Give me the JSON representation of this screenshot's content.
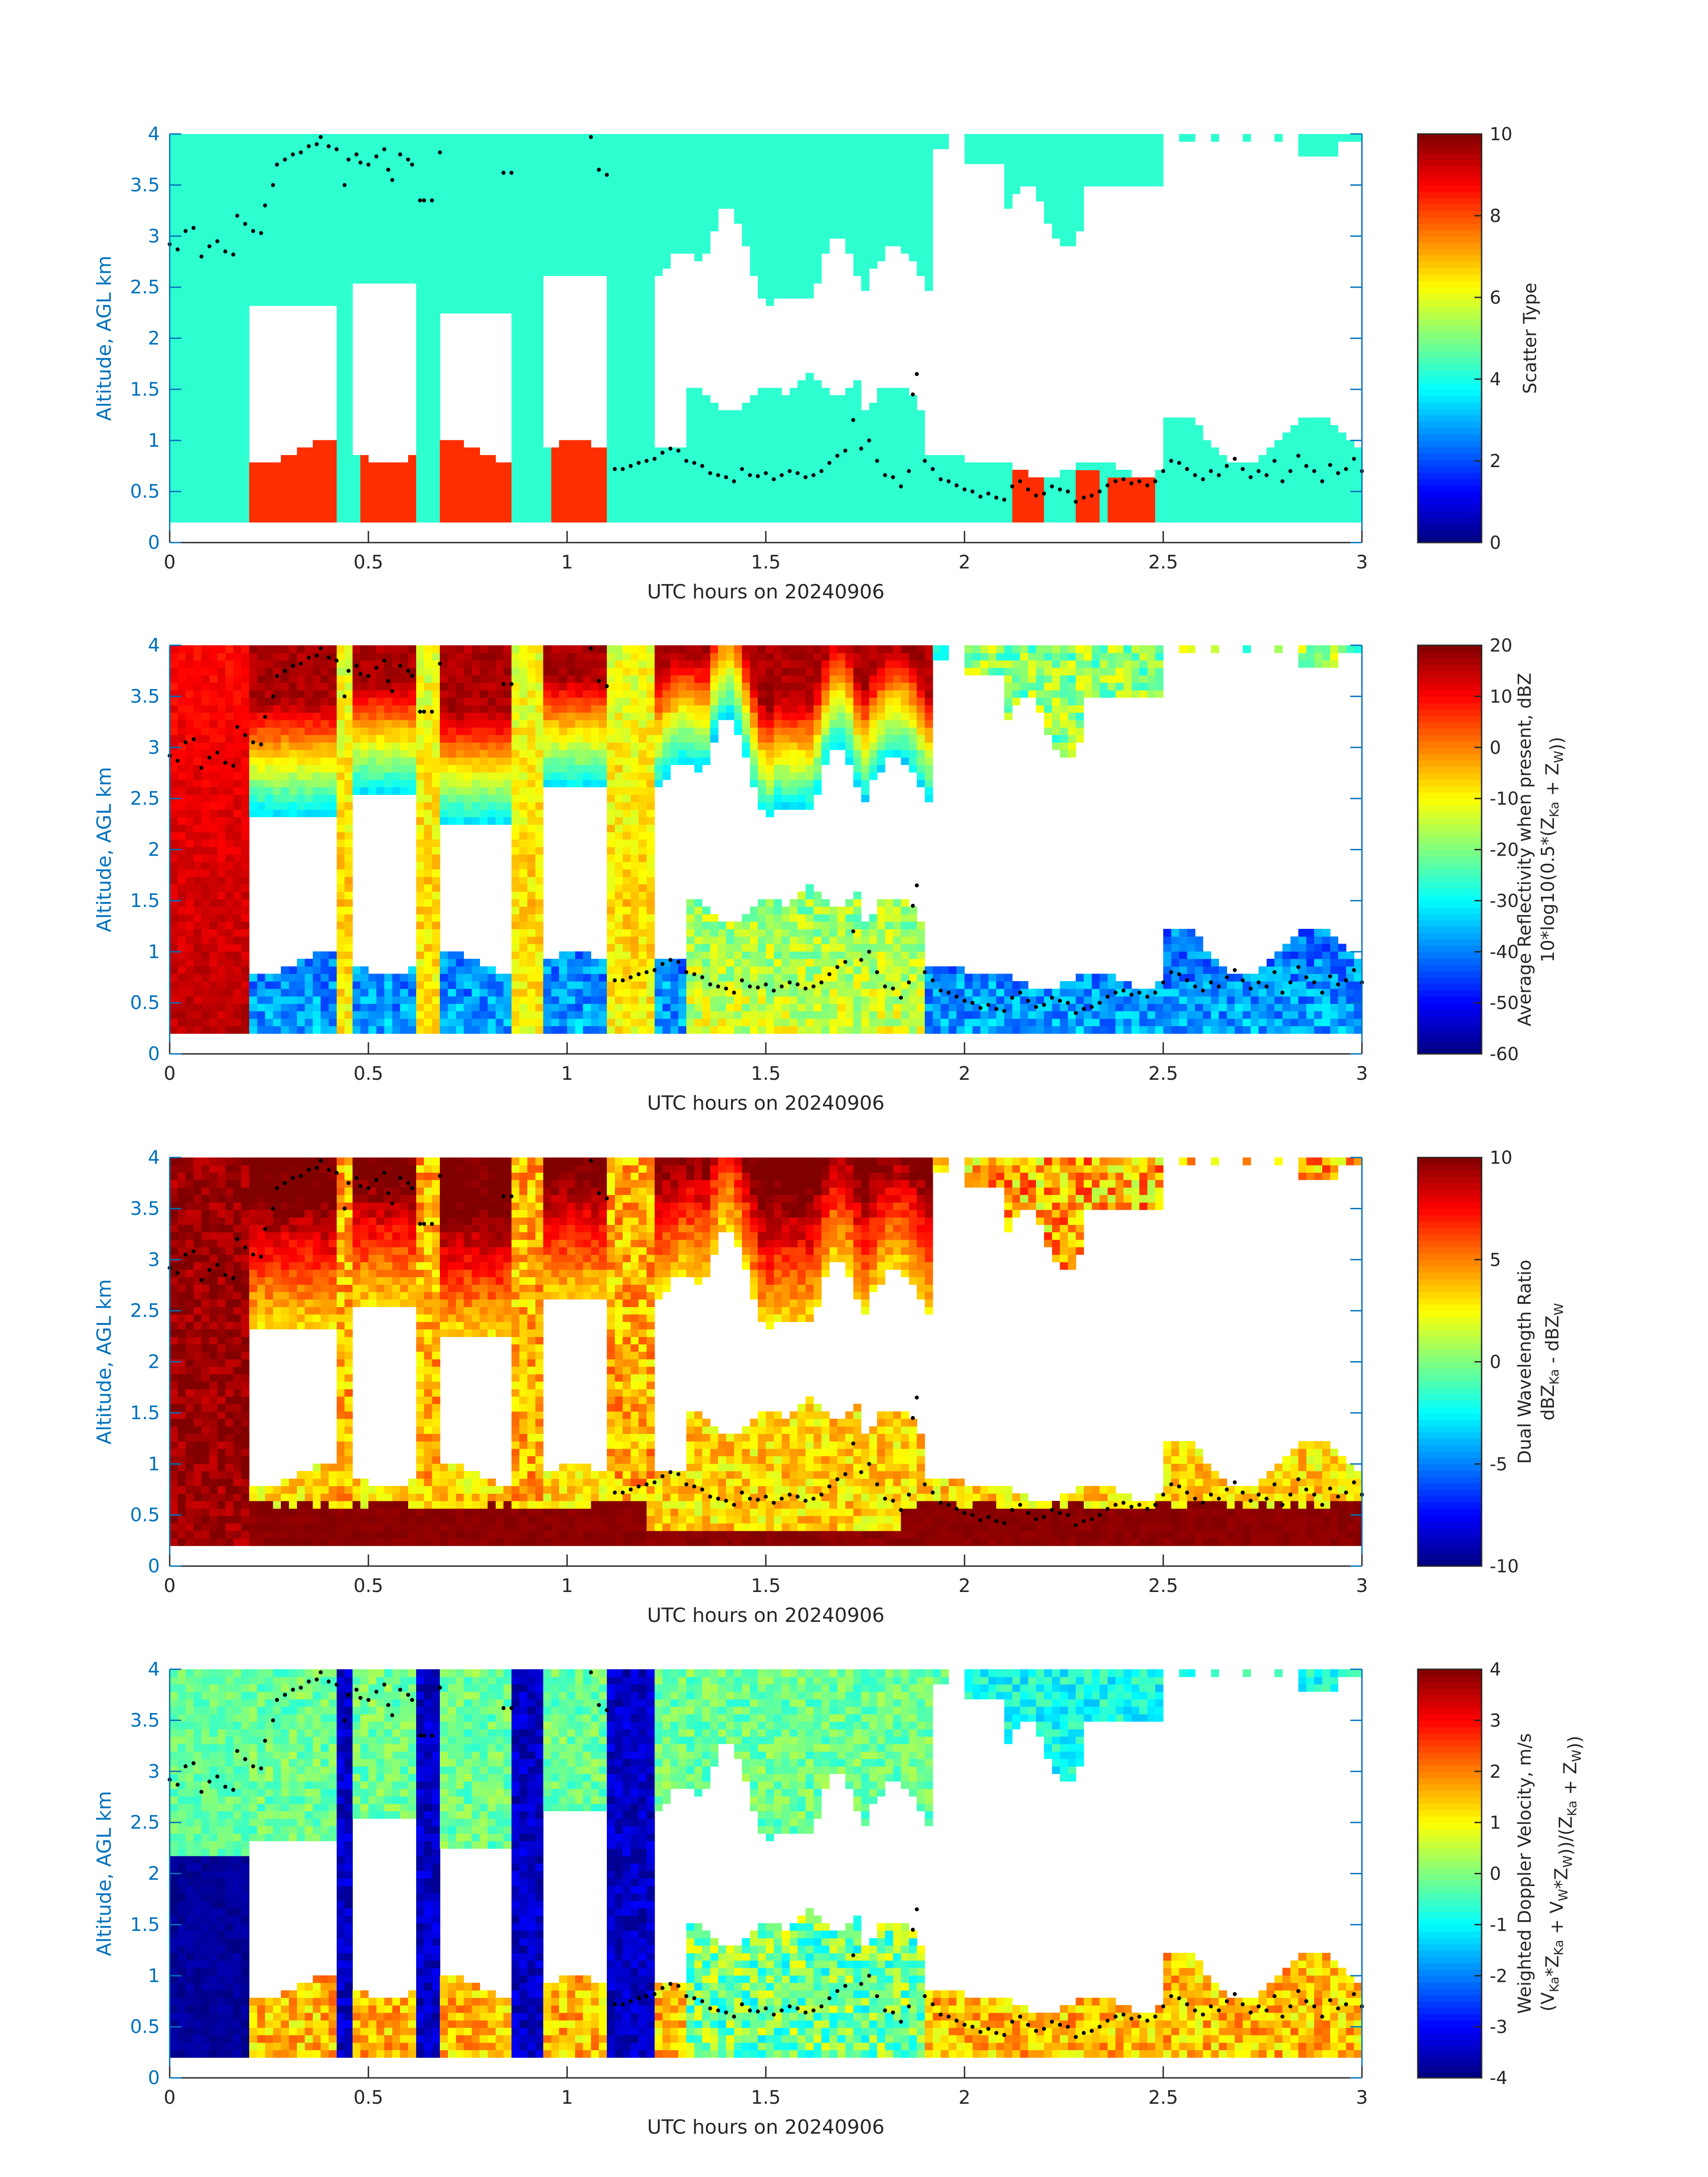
{
  "chart_data": [
    {
      "type": "heatmap",
      "panel": 1,
      "xlabel": "UTC hours on 20240906",
      "ylabel": "Altitude, AGL km",
      "xlim": [
        0,
        3
      ],
      "ylim": [
        0,
        4
      ],
      "xticks": [
        0,
        0.5,
        1,
        1.5,
        2,
        2.5,
        3
      ],
      "xtick_labels": [
        "0",
        "0.5",
        "1",
        "1.5",
        "2",
        "2.5",
        "3"
      ],
      "yticks": [
        0,
        0.5,
        1,
        1.5,
        2,
        2.5,
        3,
        3.5,
        4
      ],
      "ytick_labels": [
        "0",
        "0.5",
        "1",
        "1.5",
        "2",
        "2.5",
        "3",
        "3.5",
        "4"
      ],
      "colorbar": {
        "label_lines": [
          "Scatter Type"
        ],
        "range": [
          0,
          10
        ],
        "ticks": [
          0,
          2,
          4,
          6,
          8,
          10
        ],
        "tick_labels": [
          "0",
          "2",
          "4",
          "6",
          "8",
          "10"
        ]
      },
      "field": "scatter",
      "colormap": "jet"
    },
    {
      "type": "heatmap",
      "panel": 2,
      "xlabel": "UTC hours on 20240906",
      "ylabel": "Altitude, AGL km",
      "xlim": [
        0,
        3
      ],
      "ylim": [
        0,
        4
      ],
      "xticks": [
        0,
        0.5,
        1,
        1.5,
        2,
        2.5,
        3
      ],
      "xtick_labels": [
        "0",
        "0.5",
        "1",
        "1.5",
        "2",
        "2.5",
        "3"
      ],
      "yticks": [
        0,
        0.5,
        1,
        1.5,
        2,
        2.5,
        3,
        3.5,
        4
      ],
      "ytick_labels": [
        "0",
        "0.5",
        "1",
        "1.5",
        "2",
        "2.5",
        "3",
        "3.5",
        "4"
      ],
      "colorbar": {
        "label_lines": [
          "Average Reflectivity when present, dBZ",
          "10*log10(0.5*(Z_Ka + Z_W))"
        ],
        "range": [
          -60,
          20
        ],
        "ticks": [
          -60,
          -50,
          -40,
          -30,
          -20,
          -10,
          0,
          10,
          20
        ],
        "tick_labels": [
          "-60",
          "-50",
          "-40",
          "-30",
          "-20",
          "-10",
          "0",
          "10",
          "20"
        ]
      },
      "field": "reflectivity",
      "colormap": "jet"
    },
    {
      "type": "heatmap",
      "panel": 3,
      "xlabel": "UTC hours on 20240906",
      "ylabel": "Altitude, AGL km",
      "xlim": [
        0,
        3
      ],
      "ylim": [
        0,
        4
      ],
      "xticks": [
        0,
        0.5,
        1,
        1.5,
        2,
        2.5,
        3
      ],
      "xtick_labels": [
        "0",
        "0.5",
        "1",
        "1.5",
        "2",
        "2.5",
        "3"
      ],
      "yticks": [
        0,
        0.5,
        1,
        1.5,
        2,
        2.5,
        3,
        3.5,
        4
      ],
      "ytick_labels": [
        "0",
        "0.5",
        "1",
        "1.5",
        "2",
        "2.5",
        "3",
        "3.5",
        "4"
      ],
      "colorbar": {
        "label_lines": [
          "Dual Wavelength Ratio",
          "dBZ_Ka - dBZ_W"
        ],
        "range": [
          -10,
          10
        ],
        "ticks": [
          -10,
          -5,
          0,
          5,
          10
        ],
        "tick_labels": [
          "-10",
          "-5",
          "0",
          "5",
          "10"
        ]
      },
      "field": "dwr",
      "colormap": "jet"
    },
    {
      "type": "heatmap",
      "panel": 4,
      "xlabel": "UTC hours on 20240906",
      "ylabel": "Altitude, AGL km",
      "xlim": [
        0,
        3
      ],
      "ylim": [
        0,
        4
      ],
      "xticks": [
        0,
        0.5,
        1,
        1.5,
        2,
        2.5,
        3
      ],
      "xtick_labels": [
        "0",
        "0.5",
        "1",
        "1.5",
        "2",
        "2.5",
        "3"
      ],
      "yticks": [
        0,
        0.5,
        1,
        1.5,
        2,
        2.5,
        3,
        3.5,
        4
      ],
      "ytick_labels": [
        "0",
        "0.5",
        "1",
        "1.5",
        "2",
        "2.5",
        "3",
        "3.5",
        "4"
      ],
      "colorbar": {
        "label_lines": [
          "Weighted Doppler Velocity, m/s",
          "(V_Ka*Z_Ka + V_W*Z_W))/(Z_Ka + Z_W))"
        ],
        "range": [
          -4,
          4
        ],
        "ticks": [
          -4,
          -3,
          -2,
          -1,
          0,
          1,
          2,
          3,
          4
        ],
        "tick_labels": [
          "-4",
          "-3",
          "-2",
          "-1",
          "0",
          "1",
          "2",
          "3",
          "4"
        ]
      },
      "field": "velocity",
      "colormap": "jet"
    }
  ],
  "cloud_base_points": [
    [
      0.0,
      2.92
    ],
    [
      0.02,
      2.87
    ],
    [
      0.04,
      3.05
    ],
    [
      0.06,
      3.08
    ],
    [
      0.08,
      2.8
    ],
    [
      0.1,
      2.9
    ],
    [
      0.12,
      2.95
    ],
    [
      0.14,
      2.85
    ],
    [
      0.16,
      2.82
    ],
    [
      0.17,
      3.2
    ],
    [
      0.19,
      3.12
    ],
    [
      0.21,
      3.05
    ],
    [
      0.23,
      3.03
    ],
    [
      0.24,
      3.3
    ],
    [
      0.26,
      3.5
    ],
    [
      0.27,
      3.7
    ],
    [
      0.29,
      3.75
    ],
    [
      0.31,
      3.8
    ],
    [
      0.33,
      3.82
    ],
    [
      0.35,
      3.88
    ],
    [
      0.37,
      3.9
    ],
    [
      0.38,
      3.97
    ],
    [
      0.4,
      3.88
    ],
    [
      0.42,
      3.85
    ],
    [
      0.44,
      3.5
    ],
    [
      0.45,
      3.75
    ],
    [
      0.47,
      3.8
    ],
    [
      0.48,
      3.72
    ],
    [
      0.5,
      3.7
    ],
    [
      0.52,
      3.78
    ],
    [
      0.54,
      3.85
    ],
    [
      0.55,
      3.65
    ],
    [
      0.56,
      3.55
    ],
    [
      0.58,
      3.8
    ],
    [
      0.6,
      3.75
    ],
    [
      0.61,
      3.7
    ],
    [
      0.63,
      3.35
    ],
    [
      0.64,
      3.35
    ],
    [
      0.66,
      3.35
    ],
    [
      0.68,
      3.82
    ],
    [
      0.84,
      3.62
    ],
    [
      0.86,
      3.62
    ],
    [
      1.06,
      3.97
    ],
    [
      1.08,
      3.65
    ],
    [
      1.1,
      3.6
    ],
    [
      1.12,
      0.72
    ],
    [
      1.14,
      0.72
    ],
    [
      1.16,
      0.75
    ],
    [
      1.18,
      0.78
    ],
    [
      1.2,
      0.8
    ],
    [
      1.22,
      0.82
    ],
    [
      1.24,
      0.88
    ],
    [
      1.26,
      0.92
    ],
    [
      1.28,
      0.9
    ],
    [
      1.3,
      0.8
    ],
    [
      1.32,
      0.78
    ],
    [
      1.34,
      0.75
    ],
    [
      1.36,
      0.68
    ],
    [
      1.38,
      0.66
    ],
    [
      1.4,
      0.64
    ],
    [
      1.42,
      0.6
    ],
    [
      1.44,
      0.72
    ],
    [
      1.46,
      0.66
    ],
    [
      1.48,
      0.65
    ],
    [
      1.5,
      0.68
    ],
    [
      1.52,
      0.62
    ],
    [
      1.54,
      0.66
    ],
    [
      1.56,
      0.7
    ],
    [
      1.58,
      0.68
    ],
    [
      1.6,
      0.64
    ],
    [
      1.62,
      0.66
    ],
    [
      1.64,
      0.7
    ],
    [
      1.66,
      0.78
    ],
    [
      1.68,
      0.85
    ],
    [
      1.7,
      0.9
    ],
    [
      1.72,
      1.2
    ],
    [
      1.74,
      0.92
    ],
    [
      1.76,
      1.0
    ],
    [
      1.78,
      0.8
    ],
    [
      1.8,
      0.66
    ],
    [
      1.82,
      0.64
    ],
    [
      1.84,
      0.55
    ],
    [
      1.86,
      0.7
    ],
    [
      1.87,
      1.45
    ],
    [
      1.88,
      1.65
    ],
    [
      1.9,
      0.8
    ],
    [
      1.92,
      0.72
    ],
    [
      1.94,
      0.62
    ],
    [
      1.96,
      0.6
    ],
    [
      1.98,
      0.56
    ],
    [
      2.0,
      0.52
    ],
    [
      2.02,
      0.5
    ],
    [
      2.04,
      0.45
    ],
    [
      2.06,
      0.48
    ],
    [
      2.08,
      0.44
    ],
    [
      2.1,
      0.42
    ],
    [
      2.12,
      0.55
    ],
    [
      2.14,
      0.6
    ],
    [
      2.16,
      0.52
    ],
    [
      2.18,
      0.46
    ],
    [
      2.2,
      0.48
    ],
    [
      2.22,
      0.55
    ],
    [
      2.24,
      0.52
    ],
    [
      2.26,
      0.5
    ],
    [
      2.28,
      0.4
    ],
    [
      2.3,
      0.44
    ],
    [
      2.32,
      0.46
    ],
    [
      2.34,
      0.5
    ],
    [
      2.36,
      0.56
    ],
    [
      2.38,
      0.6
    ],
    [
      2.4,
      0.62
    ],
    [
      2.42,
      0.58
    ],
    [
      2.44,
      0.6
    ],
    [
      2.46,
      0.56
    ],
    [
      2.48,
      0.6
    ],
    [
      2.5,
      0.7
    ],
    [
      2.52,
      0.8
    ],
    [
      2.54,
      0.78
    ],
    [
      2.56,
      0.72
    ],
    [
      2.58,
      0.66
    ],
    [
      2.6,
      0.62
    ],
    [
      2.62,
      0.7
    ],
    [
      2.64,
      0.66
    ],
    [
      2.66,
      0.75
    ],
    [
      2.68,
      0.82
    ],
    [
      2.7,
      0.72
    ],
    [
      2.72,
      0.64
    ],
    [
      2.74,
      0.7
    ],
    [
      2.76,
      0.66
    ],
    [
      2.78,
      0.8
    ],
    [
      2.8,
      0.6
    ],
    [
      2.82,
      0.7
    ],
    [
      2.84,
      0.85
    ],
    [
      2.86,
      0.75
    ],
    [
      2.88,
      0.7
    ],
    [
      2.9,
      0.6
    ],
    [
      2.92,
      0.76
    ],
    [
      2.94,
      0.68
    ],
    [
      2.96,
      0.72
    ],
    [
      2.98,
      0.82
    ],
    [
      3.0,
      0.7
    ]
  ]
}
